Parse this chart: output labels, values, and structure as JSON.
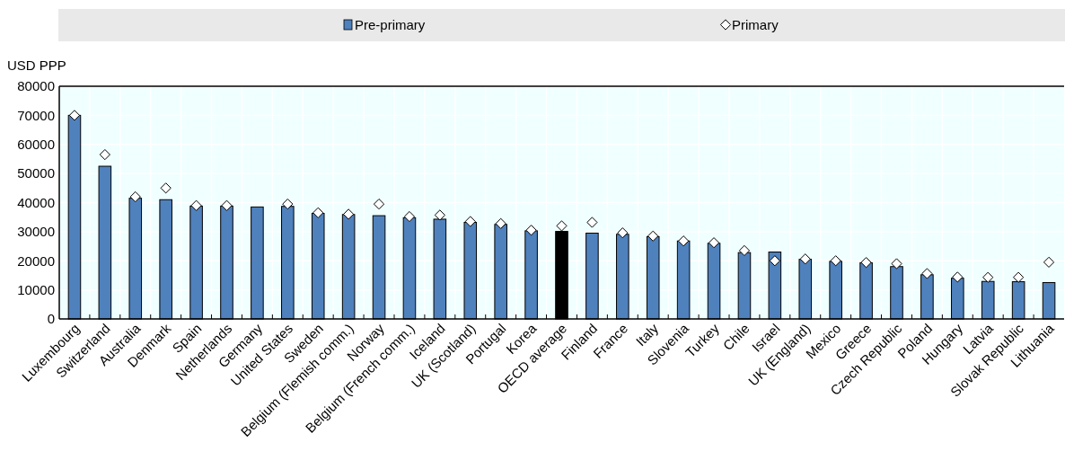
{
  "chart_data": {
    "type": "bar",
    "ylabel": "USD PPP",
    "categories": [
      "Luxembourg",
      "Switzerland",
      "Australia",
      "Denmark",
      "Spain",
      "Netherlands",
      "Germany",
      "United States",
      "Sweden",
      "Belgium (Flemish comm.)",
      "Norway",
      "Belgium (French comm.)",
      "Iceland",
      "UK (Scotland)",
      "Portugal",
      "Korea",
      "OECD average",
      "Finland",
      "France",
      "Italy",
      "Slovenia",
      "Turkey",
      "Chile",
      "Israel",
      "UK (England)",
      "Mexico",
      "Greece",
      "Czech Republic",
      "Poland",
      "Hungary",
      "Latvia",
      "Slovak Republic",
      "Lithuania"
    ],
    "series": [
      {
        "name": "Pre-primary",
        "type": "bar",
        "color": "#4f81bd",
        "colors": [
          "#4f81bd",
          "#4f81bd",
          "#4f81bd",
          "#4f81bd",
          "#4f81bd",
          "#4f81bd",
          "#4f81bd",
          "#4f81bd",
          "#4f81bd",
          "#4f81bd",
          "#4f81bd",
          "#4f81bd",
          "#4f81bd",
          "#4f81bd",
          "#4f81bd",
          "#4f81bd",
          "#000000",
          "#4f81bd",
          "#4f81bd",
          "#4f81bd",
          "#4f81bd",
          "#4f81bd",
          "#4f81bd",
          "#4f81bd",
          "#4f81bd",
          "#4f81bd",
          "#4f81bd",
          "#4f81bd",
          "#4f81bd",
          "#4f81bd",
          "#4f81bd",
          "#4f81bd",
          "#4f81bd"
        ],
        "values": [
          70000,
          52500,
          41500,
          41000,
          38800,
          38800,
          38500,
          38700,
          36300,
          35900,
          35500,
          34800,
          34300,
          33200,
          32500,
          30300,
          30100,
          29500,
          29100,
          28300,
          26800,
          26000,
          22800,
          23000,
          20500,
          19800,
          19300,
          18000,
          15200,
          14000,
          12900,
          12800,
          12500
        ]
      },
      {
        "name": "Primary",
        "type": "scatter",
        "color": "#ffffff",
        "marker": "diamond",
        "values": [
          70000,
          56500,
          42000,
          45000,
          39000,
          39000,
          null,
          39500,
          36500,
          36000,
          39500,
          35200,
          35700,
          33500,
          32800,
          30500,
          32000,
          33200,
          29600,
          28500,
          26800,
          26200,
          23500,
          20000,
          20600,
          20000,
          19400,
          19000,
          15600,
          14400,
          14300,
          14300,
          19500
        ]
      }
    ],
    "ylim": [
      0,
      80000
    ],
    "yticks": [
      0,
      10000,
      20000,
      30000,
      40000,
      50000,
      60000,
      70000,
      80000
    ],
    "grid": true,
    "legend": "top"
  }
}
